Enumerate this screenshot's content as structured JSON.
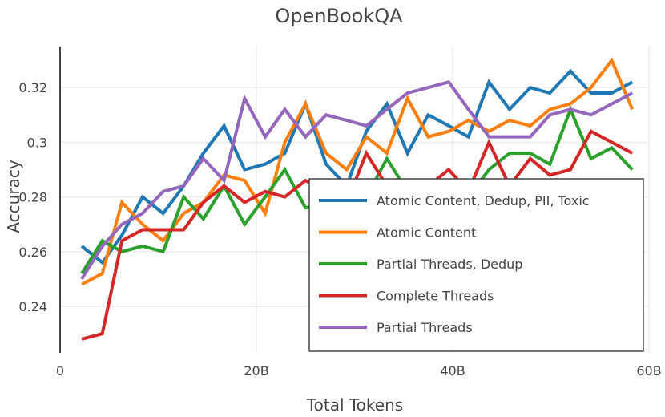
{
  "chart_data": {
    "type": "line",
    "title": "OpenBookQA",
    "xlabel": "Total Tokens",
    "ylabel": "Accuracy",
    "xlim": [
      0,
      60
    ],
    "ylim": [
      0.223,
      0.335
    ],
    "x_ticks": [
      0,
      20,
      40,
      60
    ],
    "x_tick_labels": [
      "0",
      "20B",
      "40B",
      "60B"
    ],
    "y_ticks": [
      0.24,
      0.26,
      0.28,
      0.3,
      0.32
    ],
    "y_tick_labels": [
      "0.24",
      "0.26",
      "0.28",
      "0.3",
      "0.32"
    ],
    "grid": true,
    "legend_position": "bottom-right",
    "x": [
      2.2,
      4.3,
      6.3,
      8.4,
      10.5,
      12.6,
      14.6,
      16.7,
      18.8,
      20.9,
      22.9,
      25.0,
      27.1,
      29.2,
      31.2,
      33.3,
      35.4,
      37.5,
      39.6,
      41.6,
      43.7,
      45.8,
      47.9,
      49.9,
      52.0,
      54.1,
      56.2,
      58.3
    ],
    "series": [
      {
        "name": "Atomic Content, Dedup, PII, Toxic",
        "color": "#1f77b4",
        "values": [
          0.262,
          0.256,
          0.266,
          0.28,
          0.274,
          0.284,
          0.296,
          0.306,
          0.29,
          0.292,
          0.296,
          0.314,
          0.292,
          0.284,
          0.304,
          0.314,
          0.296,
          0.31,
          0.306,
          0.302,
          0.322,
          0.312,
          0.32,
          0.318,
          0.326,
          0.318,
          0.318,
          0.322
        ]
      },
      {
        "name": "Atomic Content",
        "color": "#ff7f0e",
        "values": [
          0.248,
          0.252,
          0.278,
          0.27,
          0.264,
          0.274,
          0.278,
          0.288,
          0.286,
          0.274,
          0.3,
          0.314,
          0.296,
          0.29,
          0.302,
          0.296,
          0.316,
          0.302,
          0.304,
          0.308,
          0.304,
          0.308,
          0.306,
          0.312,
          0.314,
          0.32,
          0.33,
          0.312
        ]
      },
      {
        "name": "Partial Threads, Dedup",
        "color": "#2ca02c",
        "values": [
          0.252,
          0.264,
          0.26,
          0.262,
          0.26,
          0.28,
          0.272,
          0.284,
          0.27,
          0.28,
          0.29,
          0.276,
          0.278,
          0.28,
          0.28,
          0.294,
          0.282,
          0.282,
          0.286,
          0.28,
          0.29,
          0.296,
          0.296,
          0.292,
          0.312,
          0.294,
          0.298,
          0.29
        ]
      },
      {
        "name": "Complete Threads",
        "color": "#d62728",
        "values": [
          0.228,
          0.23,
          0.264,
          0.268,
          0.268,
          0.268,
          0.278,
          0.284,
          0.278,
          0.282,
          0.28,
          0.286,
          0.282,
          0.278,
          0.296,
          0.284,
          0.282,
          0.284,
          0.29,
          0.282,
          0.3,
          0.284,
          0.294,
          0.288,
          0.29,
          0.304,
          0.3,
          0.296
        ]
      },
      {
        "name": "Partial Threads",
        "color": "#9467bd",
        "values": [
          0.25,
          0.262,
          0.27,
          0.274,
          0.282,
          0.284,
          0.294,
          0.286,
          0.316,
          0.302,
          0.312,
          0.302,
          0.31,
          0.308,
          0.306,
          0.312,
          0.318,
          0.32,
          0.322,
          0.312,
          0.302,
          0.302,
          0.302,
          0.31,
          0.312,
          0.31,
          0.314,
          0.318
        ]
      }
    ]
  }
}
